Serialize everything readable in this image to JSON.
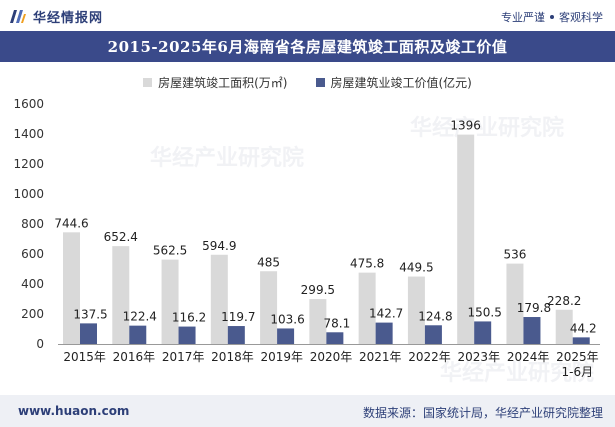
{
  "header": {
    "brand_name": "华经情报网",
    "slogan_left": "专业严谨",
    "slogan_right": "客观科学"
  },
  "title": "2015-2025年6月海南省各房屋建筑竣工面积及竣工价值",
  "footer": {
    "url": "www.huaon.com",
    "source": "数据来源：国家统计局，华经产业研究院整理"
  },
  "watermark": "华经产业研究院",
  "chart_data": {
    "type": "bar",
    "categories": [
      "2015年",
      "2016年",
      "2017年",
      "2018年",
      "2019年",
      "2020年",
      "2021年",
      "2022年",
      "2023年",
      "2024年",
      "2025年\n1-6月"
    ],
    "category_lines": [
      [
        "2015年"
      ],
      [
        "2016年"
      ],
      [
        "2017年"
      ],
      [
        "2018年"
      ],
      [
        "2019年"
      ],
      [
        "2020年"
      ],
      [
        "2021年"
      ],
      [
        "2022年"
      ],
      [
        "2023年"
      ],
      [
        "2024年"
      ],
      [
        "2025年",
        "1-6月"
      ]
    ],
    "series": [
      {
        "name": "房屋建筑竣工面积(万㎡)",
        "color": "#d9d9d9",
        "values": [
          744.6,
          652.4,
          562.5,
          594.9,
          485,
          299.5,
          475.8,
          449.5,
          1396,
          536,
          228.2
        ],
        "labels": [
          "744.6",
          "652.4",
          "562.5",
          "594.9",
          "485",
          "299.5",
          "475.8",
          "449.5",
          "1396",
          "536",
          "228.2"
        ]
      },
      {
        "name": "房屋建筑业竣工价值(亿元)",
        "color": "#4a5a8e",
        "values": [
          137.5,
          122.4,
          116.2,
          119.7,
          103.6,
          78.1,
          142.7,
          124.8,
          150.5,
          179.8,
          44.2
        ],
        "labels": [
          "137.5",
          "122.4",
          "116.2",
          "119.7",
          "103.6",
          "78.1",
          "142.7",
          "124.8",
          "150.5",
          "179.8",
          "44.2"
        ]
      }
    ],
    "yticks": [
      "0",
      "200",
      "400",
      "600",
      "800",
      "1000",
      "1200",
      "1400",
      "1600"
    ],
    "ylim": [
      0,
      1600
    ],
    "legend_position": "top-center",
    "grid": false
  }
}
